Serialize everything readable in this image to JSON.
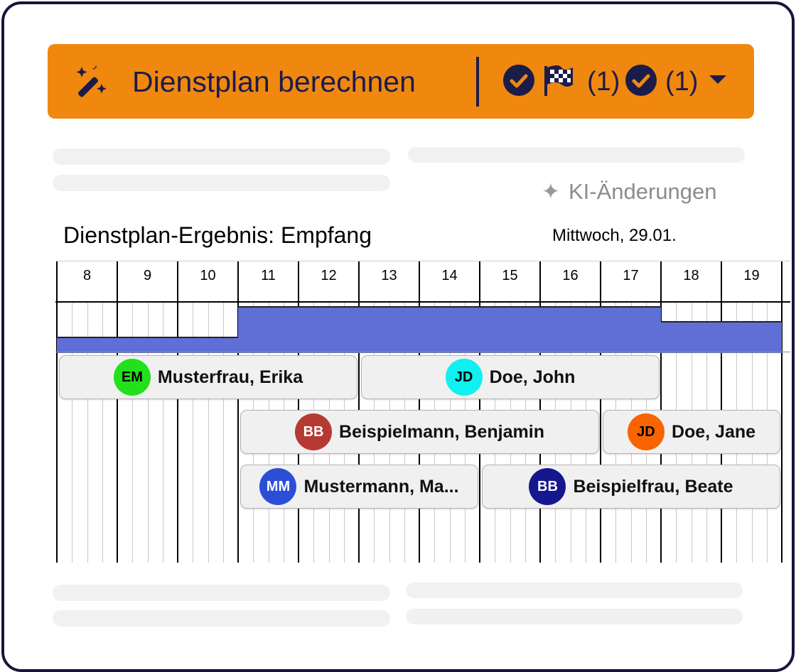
{
  "action_bar": {
    "label": "Dienstplan berechnen",
    "count_1": "(1)",
    "count_2": "(1)",
    "icons": [
      "magic-wand-icon",
      "check-circle-icon",
      "checkered-flag-icon",
      "check-circle-icon",
      "caret-down-icon"
    ],
    "bg_color": "#f0880f",
    "fg_color": "#1c1c4a"
  },
  "ki_link": {
    "label": "KI-Änderungen",
    "icon": "sparkle-icon"
  },
  "result": {
    "title": "Dienstplan-Ergebnis: Empfang",
    "date": "Mittwoch, 29.01."
  },
  "timeline": {
    "hours": [
      "8",
      "9",
      "10",
      "11",
      "12",
      "13",
      "14",
      "15",
      "16",
      "17",
      "18",
      "19"
    ],
    "coverage_color": "#5f6fd6",
    "coverage": [
      {
        "from": 8,
        "to": 11,
        "level": 1
      },
      {
        "from": 11,
        "to": 18,
        "level": 3
      },
      {
        "from": 18,
        "to": 20,
        "level": 2
      }
    ],
    "shifts": [
      {
        "name": "Musterfrau, Erika",
        "initials": "EM",
        "color": "#22e01a",
        "initials_color": "#000000",
        "start": 8,
        "end": 13,
        "row": 0
      },
      {
        "name": "Doe, John",
        "initials": "JD",
        "color": "#0ff0f0",
        "initials_color": "#000000",
        "start": 13,
        "end": 18,
        "row": 0
      },
      {
        "name": "Beispielmann, Benjamin",
        "initials": "BB",
        "color": "#b53a33",
        "initials_color": "#ffffff",
        "start": 11,
        "end": 17,
        "row": 1
      },
      {
        "name": "Doe, Jane",
        "initials": "JD",
        "color": "#f86400",
        "initials_color": "#000000",
        "start": 17,
        "end": 20,
        "row": 1
      },
      {
        "name": "Mustermann, Ma...",
        "initials": "MM",
        "color": "#2a4ed6",
        "initials_color": "#ffffff",
        "start": 11,
        "end": 15,
        "row": 2
      },
      {
        "name": "Beispielfrau, Beate",
        "initials": "BB",
        "color": "#15178f",
        "initials_color": "#ffffff",
        "start": 15,
        "end": 20,
        "row": 2
      }
    ]
  }
}
